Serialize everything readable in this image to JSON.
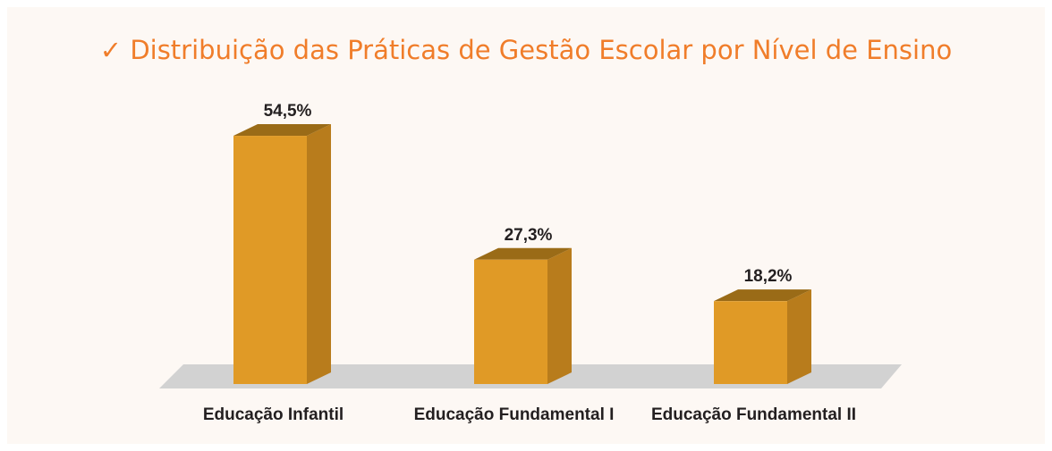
{
  "chart_data": {
    "type": "bar3d",
    "title": "✓ Distribuição das Práticas de Gestão Escolar por Nível de Ensino",
    "categories": [
      "Educação Infantil",
      "Educação Fundamental I",
      "Educação Fundamental II"
    ],
    "values": [
      54.5,
      27.3,
      18.2
    ],
    "value_labels": [
      "54,5%",
      "27,3%",
      "18,2%"
    ],
    "color": "#e09a26"
  }
}
